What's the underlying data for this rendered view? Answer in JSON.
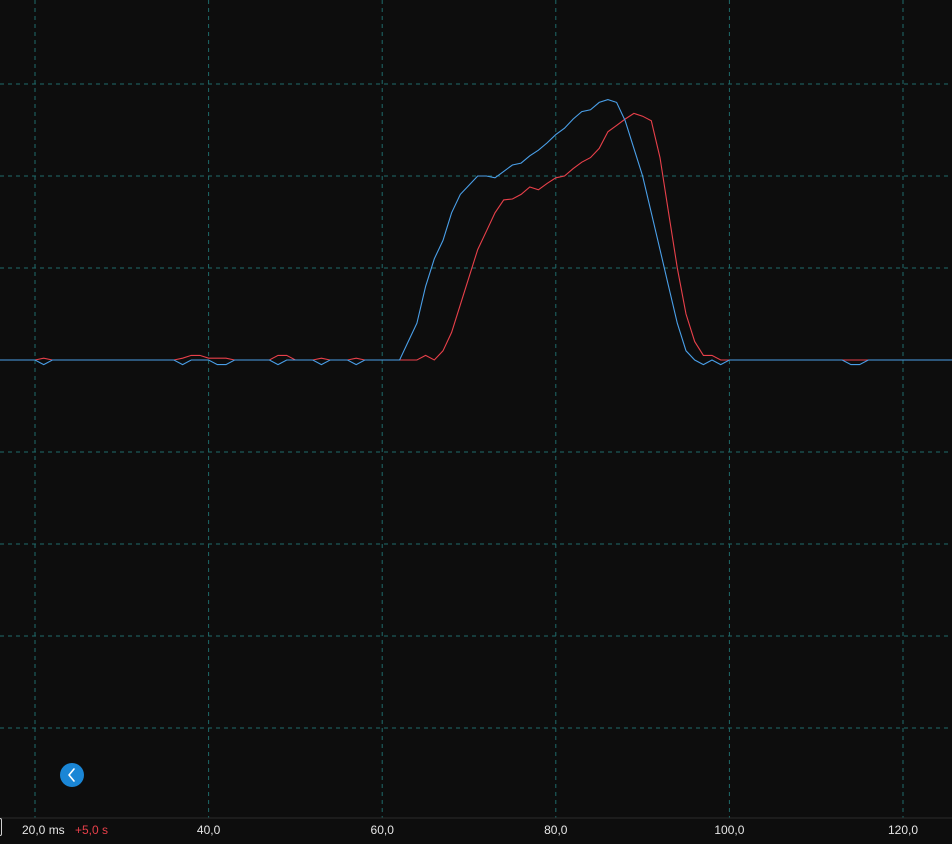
{
  "chart_data": {
    "type": "line",
    "xlim": [
      14,
      127.5
    ],
    "ylim": [
      -4,
      4
    ],
    "grid": true,
    "x_tick_labels": [
      {
        "x": 40,
        "label": "40,0"
      },
      {
        "x": 60,
        "label": "60,0"
      },
      {
        "x": 80,
        "label": "80,0"
      },
      {
        "x": 100,
        "label": "100,0"
      },
      {
        "x": 120,
        "label": "120,0"
      }
    ],
    "x_start_label": "20,0 ms",
    "x_offset_label": "+5,0 s",
    "series": [
      {
        "color": "#4a9fe8",
        "points": [
          [
            14,
            0
          ],
          [
            20,
            0
          ],
          [
            21,
            -0.05
          ],
          [
            22,
            0
          ],
          [
            36,
            0
          ],
          [
            37,
            -0.05
          ],
          [
            38,
            0
          ],
          [
            40,
            0
          ],
          [
            41,
            -0.05
          ],
          [
            42,
            -0.05
          ],
          [
            43,
            0
          ],
          [
            47,
            0
          ],
          [
            48,
            -0.05
          ],
          [
            49,
            0
          ],
          [
            52,
            0
          ],
          [
            53,
            -0.05
          ],
          [
            54,
            0
          ],
          [
            56,
            0
          ],
          [
            57,
            -0.05
          ],
          [
            58,
            0
          ],
          [
            62,
            0
          ],
          [
            63,
            0.2
          ],
          [
            64,
            0.4
          ],
          [
            65,
            0.8
          ],
          [
            66,
            1.1
          ],
          [
            67,
            1.3
          ],
          [
            68,
            1.6
          ],
          [
            69,
            1.8
          ],
          [
            70,
            1.9
          ],
          [
            71,
            2.0
          ],
          [
            72,
            2.0
          ],
          [
            73,
            1.98
          ],
          [
            74,
            2.05
          ],
          [
            75,
            2.12
          ],
          [
            76,
            2.14
          ],
          [
            77,
            2.22
          ],
          [
            78,
            2.28
          ],
          [
            79,
            2.36
          ],
          [
            80,
            2.45
          ],
          [
            81,
            2.52
          ],
          [
            82,
            2.62
          ],
          [
            83,
            2.7
          ],
          [
            84,
            2.72
          ],
          [
            85,
            2.8
          ],
          [
            86,
            2.83
          ],
          [
            87,
            2.8
          ],
          [
            88,
            2.6
          ],
          [
            89,
            2.3
          ],
          [
            90,
            2.0
          ],
          [
            91,
            1.6
          ],
          [
            92,
            1.2
          ],
          [
            93,
            0.8
          ],
          [
            94,
            0.4
          ],
          [
            95,
            0.1
          ],
          [
            96,
            0
          ],
          [
            97,
            -0.05
          ],
          [
            98,
            0
          ],
          [
            99,
            -0.05
          ],
          [
            100,
            0
          ],
          [
            113,
            0
          ],
          [
            114,
            -0.05
          ],
          [
            115,
            -0.05
          ],
          [
            116,
            0
          ],
          [
            127.5,
            0
          ]
        ]
      },
      {
        "color": "#e8404a",
        "points": [
          [
            14,
            0
          ],
          [
            20,
            0
          ],
          [
            21,
            0.02
          ],
          [
            22,
            0
          ],
          [
            36,
            0
          ],
          [
            37,
            0.02
          ],
          [
            38,
            0.05
          ],
          [
            39,
            0.05
          ],
          [
            40,
            0.02
          ],
          [
            41,
            0.02
          ],
          [
            42,
            0.02
          ],
          [
            43,
            0
          ],
          [
            47,
            0
          ],
          [
            48,
            0.05
          ],
          [
            49,
            0.05
          ],
          [
            50,
            0
          ],
          [
            52,
            0
          ],
          [
            53,
            0.02
          ],
          [
            54,
            0
          ],
          [
            56,
            0
          ],
          [
            57,
            0.02
          ],
          [
            58,
            0
          ],
          [
            64,
            0
          ],
          [
            65,
            0.05
          ],
          [
            66,
            0
          ],
          [
            67,
            0.1
          ],
          [
            68,
            0.3
          ],
          [
            69,
            0.6
          ],
          [
            70,
            0.9
          ],
          [
            71,
            1.2
          ],
          [
            72,
            1.4
          ],
          [
            73,
            1.6
          ],
          [
            74,
            1.74
          ],
          [
            75,
            1.75
          ],
          [
            76,
            1.8
          ],
          [
            77,
            1.88
          ],
          [
            78,
            1.85
          ],
          [
            79,
            1.92
          ],
          [
            80,
            1.98
          ],
          [
            81,
            2.0
          ],
          [
            82,
            2.08
          ],
          [
            83,
            2.15
          ],
          [
            84,
            2.2
          ],
          [
            85,
            2.3
          ],
          [
            86,
            2.48
          ],
          [
            87,
            2.55
          ],
          [
            88,
            2.62
          ],
          [
            89,
            2.68
          ],
          [
            90,
            2.65
          ],
          [
            91,
            2.6
          ],
          [
            92,
            2.2
          ],
          [
            93,
            1.6
          ],
          [
            94,
            1.0
          ],
          [
            95,
            0.5
          ],
          [
            96,
            0.2
          ],
          [
            97,
            0.05
          ],
          [
            98,
            0.05
          ],
          [
            99,
            0
          ],
          [
            127.5,
            0
          ]
        ]
      }
    ]
  },
  "controls": {
    "collapse_icon": "chevron-left-icon",
    "collapse_button_color": "#1a86d6"
  },
  "theme": {
    "background": "#0d0d0d",
    "grid_color": "#1f6a6a"
  }
}
